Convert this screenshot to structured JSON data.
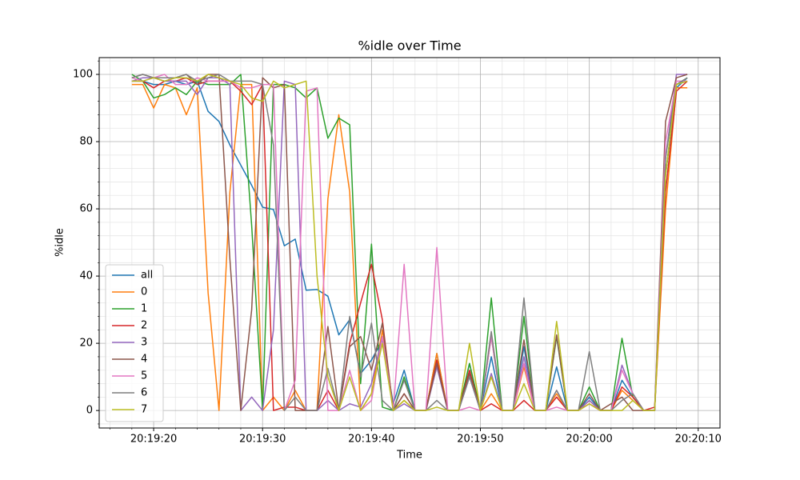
{
  "chart_data": {
    "type": "line",
    "title": "%idle over Time",
    "xlabel": "Time",
    "ylabel": "%idle",
    "x": [
      "20:19:18",
      "20:19:19",
      "20:19:20",
      "20:19:21",
      "20:19:22",
      "20:19:23",
      "20:19:24",
      "20:19:25",
      "20:19:26",
      "20:19:27",
      "20:19:28",
      "20:19:29",
      "20:19:30",
      "20:19:31",
      "20:19:32",
      "20:19:33",
      "20:19:34",
      "20:19:35",
      "20:19:36",
      "20:19:37",
      "20:19:38",
      "20:19:39",
      "20:19:40",
      "20:19:41",
      "20:19:42",
      "20:19:43",
      "20:19:44",
      "20:19:45",
      "20:19:46",
      "20:19:47",
      "20:19:48",
      "20:19:49",
      "20:19:50",
      "20:19:51",
      "20:19:52",
      "20:19:53",
      "20:19:54",
      "20:19:55",
      "20:19:56",
      "20:19:57",
      "20:19:58",
      "20:19:59",
      "20:20:00",
      "20:20:01",
      "20:20:02",
      "20:20:03",
      "20:20:04",
      "20:20:05",
      "20:20:06",
      "20:20:07",
      "20:20:08",
      "20:20:09"
    ],
    "series": [
      {
        "name": "all",
        "color": "#1f77b4",
        "values": [
          98,
          98,
          97,
          97,
          98,
          97,
          98,
          89,
          86,
          79,
          73,
          67,
          60.5,
          59.8,
          49,
          51,
          35.8,
          36,
          34,
          22.5,
          27,
          11,
          15,
          21,
          2,
          12,
          0,
          0,
          17,
          0,
          0,
          14,
          0,
          16,
          0,
          0,
          19,
          0,
          0,
          13,
          0,
          0,
          4,
          0,
          0,
          9,
          4,
          0,
          0,
          70,
          96,
          99
        ]
      },
      {
        "name": "0",
        "color": "#ff7f0e",
        "values": [
          97,
          97,
          90,
          97,
          96,
          88,
          96,
          35,
          0,
          65,
          97,
          97,
          0,
          4,
          0,
          6,
          0,
          0,
          63,
          88,
          65,
          0,
          5,
          24,
          0,
          3,
          0,
          0,
          17,
          0,
          0,
          11,
          0,
          5,
          0,
          0,
          13,
          0,
          0,
          5,
          0,
          0,
          3,
          0,
          0,
          6,
          3,
          0,
          0,
          60,
          96,
          96
        ]
      },
      {
        "name": "1",
        "color": "#2ca02c",
        "values": [
          100,
          98,
          93,
          94,
          96,
          94,
          98,
          97,
          97,
          97,
          100,
          55,
          0,
          97,
          97,
          96,
          93,
          96,
          81,
          87,
          85,
          8,
          49.5,
          1,
          0,
          10,
          0,
          0,
          15,
          0,
          0,
          14,
          0,
          33.5,
          0,
          0,
          28,
          0,
          0,
          22,
          0,
          0,
          7,
          0,
          0,
          21.5,
          4,
          0,
          0,
          70,
          97,
          99
        ]
      },
      {
        "name": "2",
        "color": "#d62728",
        "values": [
          98,
          98,
          96,
          98,
          98,
          99,
          97,
          98,
          98,
          98,
          95,
          91,
          97,
          0,
          1,
          1,
          0,
          0,
          6,
          0,
          20,
          32,
          43.5,
          27,
          0,
          5,
          0,
          0,
          15,
          0,
          0,
          12,
          0,
          2,
          0,
          0,
          3,
          0,
          0,
          4,
          0,
          0,
          2,
          0,
          0,
          7,
          4,
          0,
          1,
          65,
          95,
          98
        ]
      },
      {
        "name": "3",
        "color": "#9467bd",
        "values": [
          98,
          99,
          99,
          98,
          98,
          98,
          94,
          99,
          99,
          97,
          0,
          4,
          0,
          24,
          98,
          97,
          0,
          0,
          3,
          0,
          2,
          1,
          8,
          22,
          0,
          2,
          0,
          0,
          13,
          0,
          0,
          10,
          0,
          11,
          0,
          0,
          16,
          0,
          0,
          6,
          0,
          0,
          3,
          0,
          0,
          13.5,
          5,
          0,
          0,
          75,
          100,
          100
        ]
      },
      {
        "name": "4",
        "color": "#8c564b",
        "values": [
          99,
          100,
          99,
          98,
          99,
          100,
          97,
          100,
          100,
          45,
          0,
          30,
          99,
          96,
          97,
          0,
          0,
          0,
          25,
          0,
          19,
          22,
          12,
          26,
          0,
          5,
          0,
          0,
          14,
          0,
          0,
          11,
          0,
          22,
          0,
          0,
          21,
          0,
          0,
          22.5,
          0,
          0,
          5,
          0,
          2,
          4,
          0,
          0,
          0,
          86,
          99,
          100
        ]
      },
      {
        "name": "5",
        "color": "#e377c2",
        "values": [
          99,
          98,
          99,
          100,
          97,
          97,
          99,
          98,
          98,
          98,
          96,
          96,
          97,
          97,
          0,
          9,
          95,
          96,
          0,
          0,
          12,
          0,
          3,
          22,
          0,
          43.5,
          0,
          0,
          48.5,
          0,
          0,
          1,
          0,
          22,
          0,
          0,
          14,
          0,
          0,
          1,
          0,
          0,
          2,
          0,
          0,
          12,
          5,
          0,
          0,
          80,
          98,
          98
        ]
      },
      {
        "name": "6",
        "color": "#7f7f7f",
        "values": [
          99,
          100,
          99,
          99,
          99,
          100,
          98,
          99,
          100,
          98,
          98,
          98,
          97,
          79,
          0,
          4,
          0,
          0,
          12.5,
          0,
          28,
          10,
          26,
          3,
          0,
          9,
          0,
          0,
          3,
          0,
          0,
          10,
          0,
          23.5,
          0,
          0,
          33.5,
          0,
          0,
          6,
          0,
          0,
          17.5,
          0,
          0,
          3,
          5,
          0,
          0,
          75,
          97,
          99
        ]
      },
      {
        "name": "7",
        "color": "#bcbd22",
        "values": [
          98,
          98,
          99,
          98,
          99,
          99,
          98,
          100,
          99,
          98,
          97,
          93,
          92,
          98,
          96,
          97,
          98,
          40,
          10,
          0,
          10,
          0,
          5,
          20,
          0,
          3,
          0,
          0,
          1,
          0,
          0,
          20,
          0,
          10,
          0,
          0,
          8,
          0,
          0,
          26.5,
          0,
          0,
          2,
          0,
          0,
          0,
          3,
          0,
          0,
          70,
          97,
          98
        ]
      }
    ],
    "xlim": [
      "20:19:15",
      "20:20:12"
    ],
    "xticks": [
      "20:19:20",
      "20:19:30",
      "20:19:40",
      "20:19:50",
      "20:20:00",
      "20:20:10"
    ],
    "xminorticks": [
      "20:19:16",
      "20:19:18",
      "20:19:22",
      "20:19:24",
      "20:19:26",
      "20:19:28",
      "20:19:32",
      "20:19:34",
      "20:19:36",
      "20:19:38",
      "20:19:42",
      "20:19:44",
      "20:19:46",
      "20:19:48",
      "20:19:52",
      "20:19:54",
      "20:19:56",
      "20:19:58",
      "20:20:02",
      "20:20:04",
      "20:20:06",
      "20:20:08"
    ],
    "ylim": [
      -5.2,
      105
    ],
    "yticks": [
      0,
      20,
      40,
      60,
      80,
      100
    ],
    "yminorticks": [
      -4,
      4,
      8,
      12,
      16,
      24,
      28,
      32,
      36,
      44,
      48,
      52,
      56,
      64,
      68,
      72,
      76,
      84,
      88,
      92,
      96,
      104
    ],
    "grid": true,
    "legend": "lower left"
  }
}
